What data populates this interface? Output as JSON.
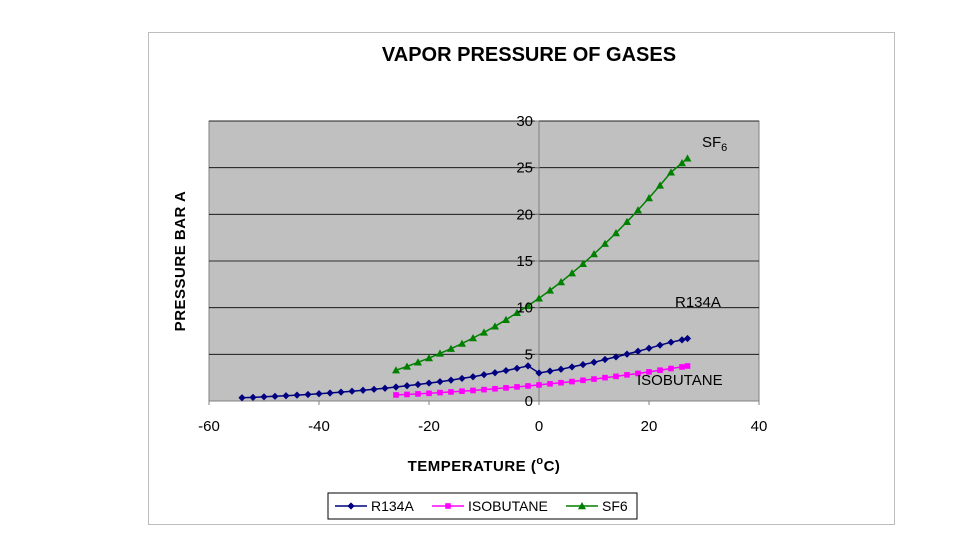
{
  "chart_data": {
    "type": "line",
    "title": "VAPOR PRESSURE OF GASES",
    "xlabel": "TEMPERATURE (",
    "xlabel_sup": "o",
    "xlabel_unit": "C)",
    "ylabel": "PRESSURE BAR A",
    "xlim": [
      -60,
      40
    ],
    "ylim": [
      0,
      30
    ],
    "xticks": [
      "-60",
      "-40",
      "-20",
      "0",
      "20",
      "40"
    ],
    "yticks": [
      "0",
      "5",
      "10",
      "15",
      "20",
      "25",
      "30"
    ],
    "grid": true,
    "legend": "bottom",
    "plot_background": "#c0c0c0",
    "annotations": [
      {
        "series": "SF6",
        "text": "SF",
        "subscript": "6"
      },
      {
        "series": "R134A",
        "text": "R134A",
        "subscript": ""
      },
      {
        "series": "ISOBUTANE",
        "text": "ISOBUTANE",
        "subscript": ""
      }
    ],
    "series": [
      {
        "name": "R134A",
        "color": "#000080",
        "marker": "diamond",
        "x": [
          -54,
          -52,
          -50,
          -48,
          -46,
          -44,
          -42,
          -40,
          -38,
          -36,
          -34,
          -32,
          -30,
          -28,
          -26,
          -24,
          -22,
          -20,
          -18,
          -16,
          -14,
          -12,
          -10,
          -8,
          -6,
          -4,
          -2,
          0,
          2,
          4,
          6,
          8,
          10,
          12,
          14,
          16,
          18,
          20,
          22,
          24,
          26,
          27
        ],
        "y": [
          0.35,
          0.39,
          0.45,
          0.5,
          0.56,
          0.63,
          0.7,
          0.78,
          0.86,
          0.95,
          1.05,
          1.15,
          1.25,
          1.37,
          1.5,
          1.63,
          1.77,
          1.92,
          2.07,
          2.24,
          2.42,
          2.6,
          2.82,
          3.03,
          3.26,
          3.5,
          3.76,
          3.0,
          3.2,
          3.4,
          3.65,
          3.9,
          4.15,
          4.45,
          4.72,
          5.02,
          5.33,
          5.65,
          5.98,
          6.3,
          6.55,
          6.7
        ]
      },
      {
        "name": "ISOBUTANE",
        "color": "#ff00ff",
        "marker": "square",
        "x": [
          -26,
          -24,
          -22,
          -20,
          -18,
          -16,
          -14,
          -12,
          -10,
          -8,
          -6,
          -4,
          -2,
          0,
          2,
          4,
          6,
          8,
          10,
          12,
          14,
          16,
          18,
          20,
          22,
          24,
          26,
          27
        ],
        "y": [
          0.65,
          0.7,
          0.76,
          0.82,
          0.9,
          0.97,
          1.05,
          1.13,
          1.22,
          1.31,
          1.41,
          1.51,
          1.61,
          1.72,
          1.84,
          1.96,
          2.08,
          2.22,
          2.35,
          2.5,
          2.64,
          2.8,
          2.95,
          3.12,
          3.3,
          3.48,
          3.65,
          3.75
        ]
      },
      {
        "name": "SF6",
        "color": "#008000",
        "marker": "triangle",
        "x": [
          -26,
          -24,
          -22,
          -20,
          -18,
          -16,
          -14,
          -12,
          -10,
          -8,
          -6,
          -4,
          -2,
          0,
          2,
          4,
          6,
          8,
          10,
          12,
          14,
          16,
          18,
          20,
          22,
          24,
          26,
          27
        ],
        "y": [
          3.3,
          3.7,
          4.15,
          4.6,
          5.1,
          5.6,
          6.15,
          6.75,
          7.35,
          8.0,
          8.7,
          9.45,
          10.2,
          11.0,
          11.85,
          12.75,
          13.7,
          14.7,
          15.75,
          16.85,
          18.0,
          19.2,
          20.45,
          21.75,
          23.1,
          24.5,
          25.5,
          26.0
        ]
      }
    ]
  }
}
